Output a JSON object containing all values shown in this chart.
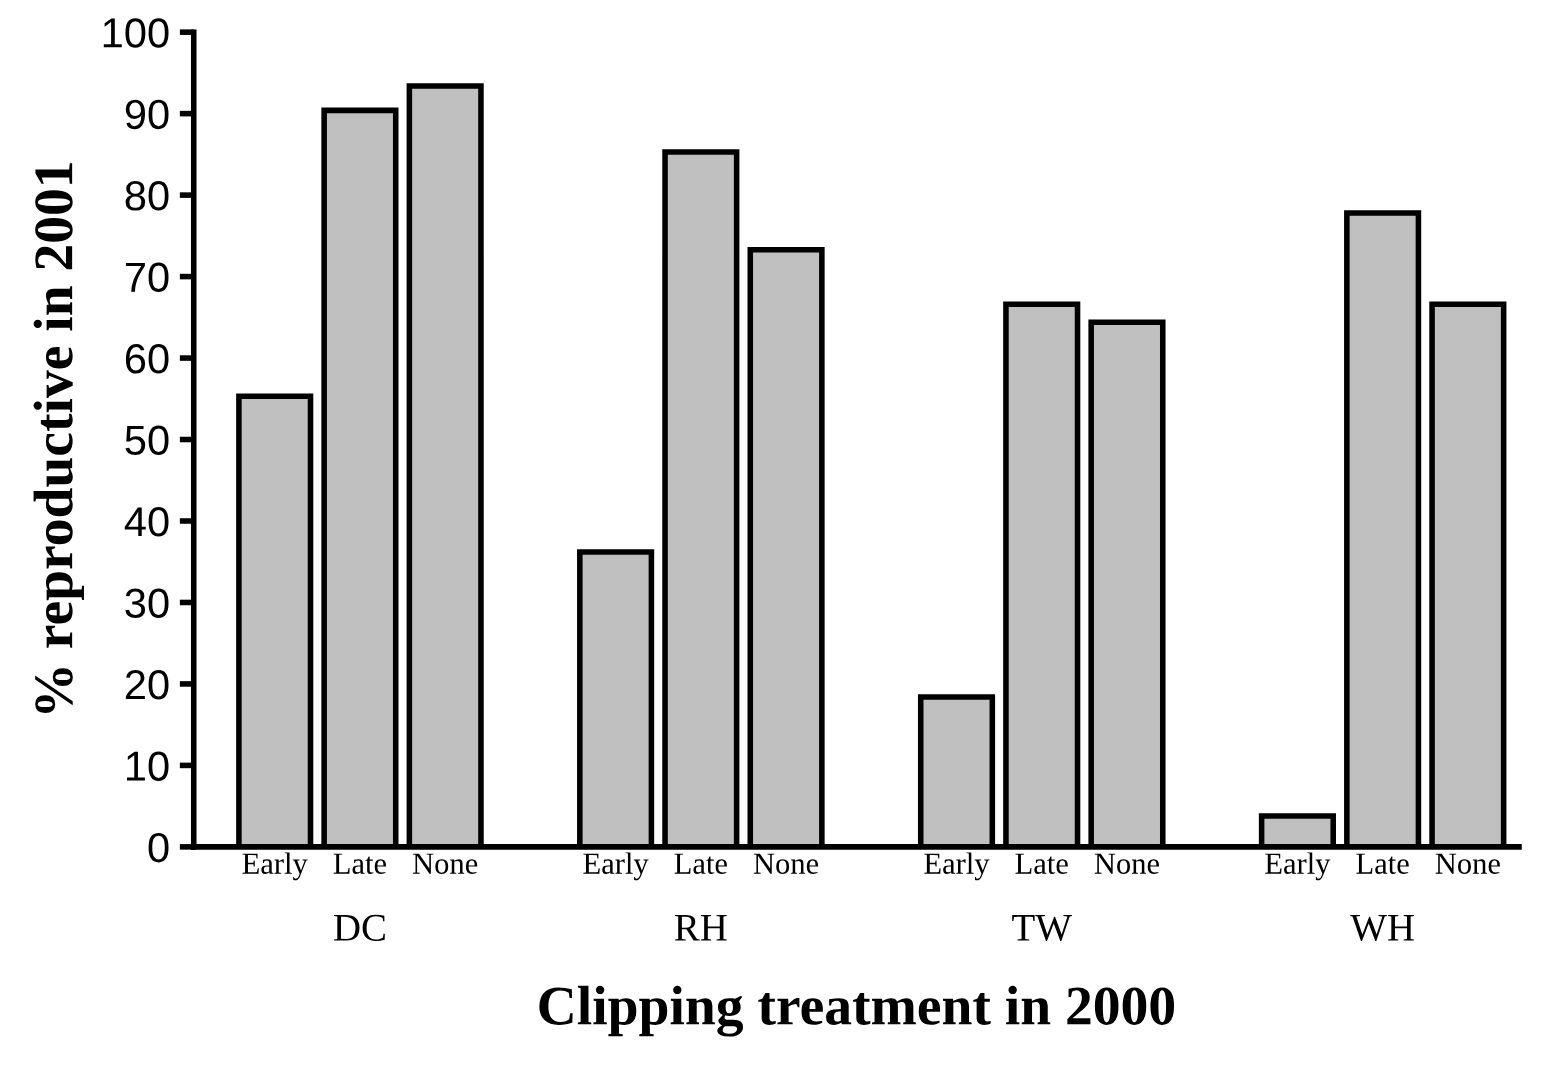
{
  "chart_data": {
    "type": "bar",
    "categories": [
      "Early",
      "Late",
      "None",
      null,
      "Early",
      "Late",
      "None",
      null,
      "Early",
      "Late",
      "None",
      null,
      "Early",
      "Late",
      "None"
    ],
    "values": [
      55.3,
      90.4,
      93.4,
      null,
      36.2,
      85.3,
      73.3,
      null,
      18.4,
      66.6,
      64.4,
      null,
      3.8,
      77.8,
      66.6
    ],
    "color": "#c0c0c0",
    "ylim": [
      0,
      100
    ],
    "yticks": [
      0,
      10,
      20,
      30,
      40,
      50,
      60,
      70,
      80,
      90,
      100
    ],
    "xlabel": "Clipping treatment in 2000",
    "ylabel": "% reproductive in 2001",
    "annotations": [
      "DC",
      "RH",
      "TW",
      "WH"
    ],
    "grid": false,
    "legend": false
  }
}
